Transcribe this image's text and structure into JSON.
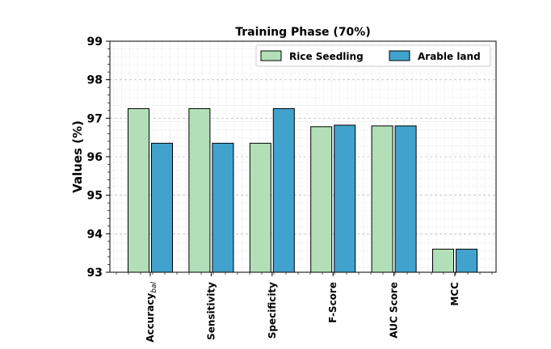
{
  "chart_data": {
    "type": "bar",
    "title": "Training Phase (70%)",
    "xlabel": "",
    "ylabel": "Values (%)",
    "ylim": [
      93,
      99
    ],
    "yticks": [
      93,
      94,
      95,
      96,
      97,
      98,
      99
    ],
    "grid": true,
    "legend_position": "top-right",
    "categories": [
      "Accuracy",
      "Sensitivity",
      "Specificity",
      "F-Score",
      "AUC Score",
      "MCC"
    ],
    "category_subscripts": [
      "bal",
      "",
      "",
      "",
      "",
      ""
    ],
    "series": [
      {
        "name": "Rice Seedling",
        "color": "#b2dfb7",
        "values": [
          97.25,
          97.25,
          96.35,
          96.78,
          96.8,
          93.6
        ]
      },
      {
        "name": "Arable land",
        "color": "#41a3cd",
        "values": [
          96.35,
          96.35,
          97.25,
          96.82,
          96.8,
          93.6
        ]
      }
    ]
  }
}
